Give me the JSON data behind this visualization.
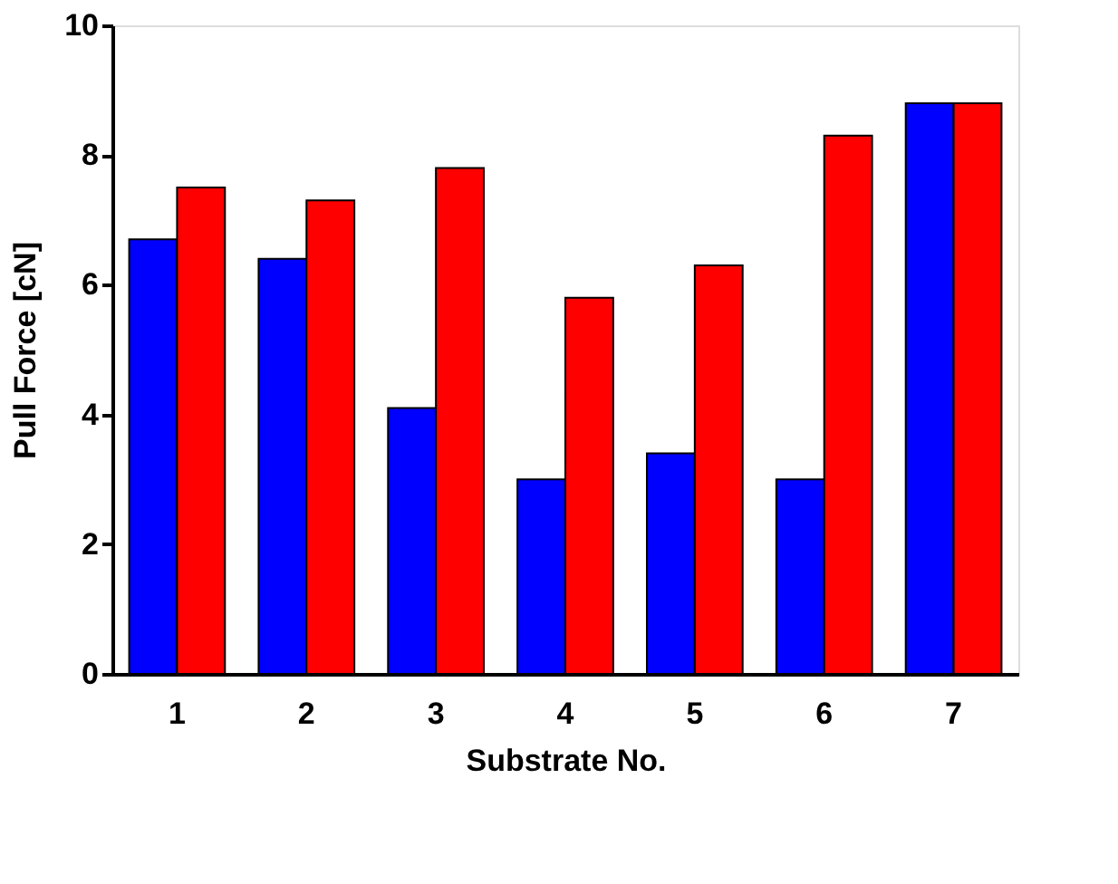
{
  "chart_data": {
    "type": "bar",
    "xlabel": "Substrate No.",
    "ylabel": "Pull Force [cN]",
    "categories": [
      "1",
      "2",
      "3",
      "4",
      "5",
      "6",
      "7"
    ],
    "series": [
      {
        "color": "#0000ff",
        "values": [
          6.7,
          6.4,
          4.1,
          3.0,
          3.4,
          3.0,
          8.8
        ]
      },
      {
        "color": "#ff0000",
        "values": [
          7.5,
          7.3,
          7.8,
          5.8,
          6.3,
          8.3,
          8.8
        ]
      }
    ],
    "ylim": [
      0,
      10
    ],
    "yticks": [
      0,
      2,
      4,
      6,
      8,
      10
    ]
  }
}
